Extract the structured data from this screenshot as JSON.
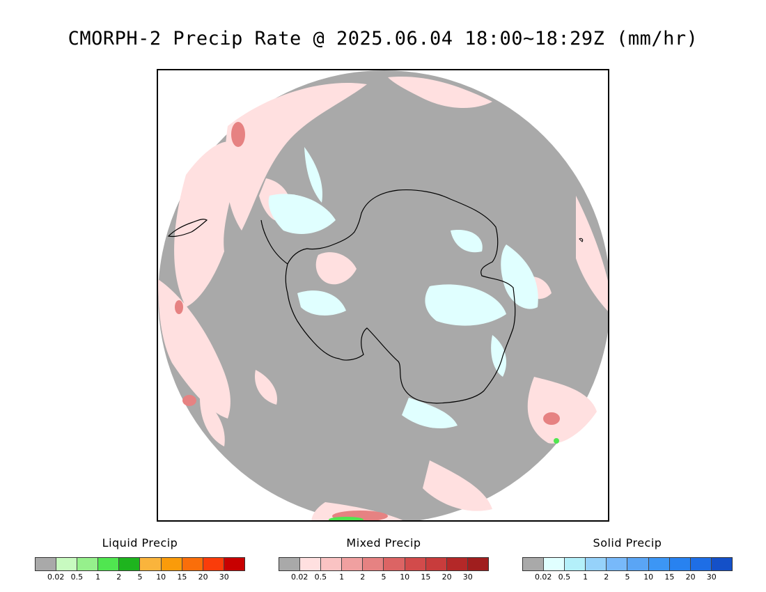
{
  "title": "CMORPH-2 Precip Rate @ 2025.06.04 18:00~18:29Z (mm/hr)",
  "map": {
    "projection": "south-polar-stereographic",
    "no_precip_color": "#a9a9a9",
    "coastline_color": "#000000",
    "background_color": "#ffffff"
  },
  "legends": [
    {
      "title": "Liquid Precip",
      "colors": [
        "#a9a9a9",
        "#c8fac0",
        "#96f08c",
        "#50e650",
        "#1eb41e",
        "#fab43c",
        "#fa9b0a",
        "#fa6e0a",
        "#fa3c0a",
        "#c80000"
      ],
      "ticks": [
        "0.02",
        "0.5",
        "1",
        "2",
        "5",
        "10",
        "15",
        "20",
        "30"
      ]
    },
    {
      "title": "Mixed Precip",
      "colors": [
        "#a9a9a9",
        "#ffe0e0",
        "#fac3c3",
        "#f0a0a0",
        "#e68282",
        "#dc6464",
        "#d24b4b",
        "#c83c3c",
        "#b42828",
        "#a01e1e"
      ],
      "ticks": [
        "0.02",
        "0.5",
        "1",
        "2",
        "5",
        "10",
        "15",
        "20",
        "30"
      ]
    },
    {
      "title": "Solid Precip",
      "colors": [
        "#a9a9a9",
        "#e0ffff",
        "#b4f0fa",
        "#96d2fa",
        "#78b9fa",
        "#5aa5f5",
        "#3c96f5",
        "#2882f0",
        "#1e6ee6",
        "#1450c8"
      ],
      "ticks": [
        "0.02",
        "0.5",
        "1",
        "2",
        "5",
        "10",
        "15",
        "20",
        "30"
      ]
    }
  ]
}
